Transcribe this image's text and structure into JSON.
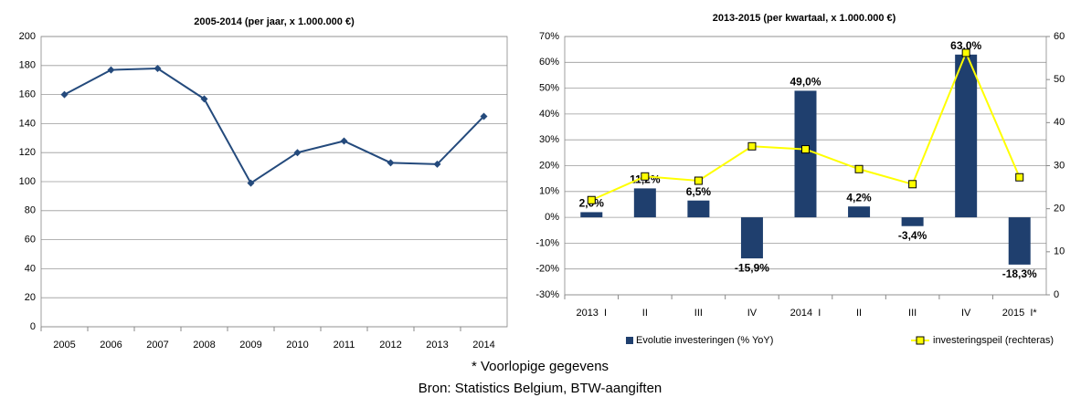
{
  "chart_data": [
    {
      "type": "line",
      "title": "2005-2014 (per jaar, x 1.000.000 €)",
      "categories": [
        "2005",
        "2006",
        "2007",
        "2008",
        "2009",
        "2010",
        "2011",
        "2012",
        "2013",
        "2014"
      ],
      "series": [
        {
          "name": null,
          "color": "#244a7c",
          "values": [
            160,
            177,
            178,
            157,
            99,
            120,
            128,
            113,
            112,
            145
          ]
        }
      ],
      "ylim": [
        0,
        200
      ],
      "yticks": [
        0,
        20,
        40,
        60,
        80,
        100,
        120,
        140,
        160,
        180,
        200
      ],
      "grid": true
    },
    {
      "type": "combo",
      "title": "2013-2015 (per kwartaal, x 1.000.000 €)",
      "categories": [
        "2013  I",
        "II",
        "III",
        "IV",
        "2014  I",
        "II",
        "III",
        "IV",
        "2015  I*"
      ],
      "series": [
        {
          "name": "Evolutie investeringen (% YoY)",
          "type": "bar",
          "color": "#1f3f6e",
          "values": [
            2.0,
            11.2,
            6.5,
            -15.9,
            49.0,
            4.2,
            -3.4,
            63.0,
            -18.3
          ],
          "value_labels": [
            "2,0%",
            "11,2%",
            "6,5%",
            "-15,9%",
            "49,0%",
            "4,2%",
            "-3,4%",
            "63,0%",
            "-18,3%"
          ]
        },
        {
          "name": "investeringspeil (rechteras)",
          "type": "line",
          "axis": "y2",
          "color": "#ffff00",
          "values": [
            22,
            27.5,
            26.5,
            34.5,
            33.8,
            29.2,
            25.7,
            56.2,
            27.3
          ]
        }
      ],
      "ylim": [
        -30,
        70
      ],
      "yticks": [
        {
          "value": -30,
          "label": "-30%"
        },
        {
          "value": -20,
          "label": "-20%"
        },
        {
          "value": -10,
          "label": "-10%"
        },
        {
          "value": 0,
          "label": "0%"
        },
        {
          "value": 10,
          "label": "10%"
        },
        {
          "value": 20,
          "label": "20%"
        },
        {
          "value": 30,
          "label": "30%"
        },
        {
          "value": 40,
          "label": "40%"
        },
        {
          "value": 50,
          "label": "50%"
        },
        {
          "value": 60,
          "label": "60%"
        },
        {
          "value": 70,
          "label": "70%"
        }
      ],
      "y2lim": [
        0,
        60
      ],
      "y2ticks": [
        0,
        10,
        20,
        30,
        40,
        50,
        60
      ],
      "grid": true,
      "legend": "bottom"
    }
  ],
  "notes": [
    "* Voorlopige gegevens",
    "Bron: Statistics Belgium, BTW-aangiften"
  ]
}
